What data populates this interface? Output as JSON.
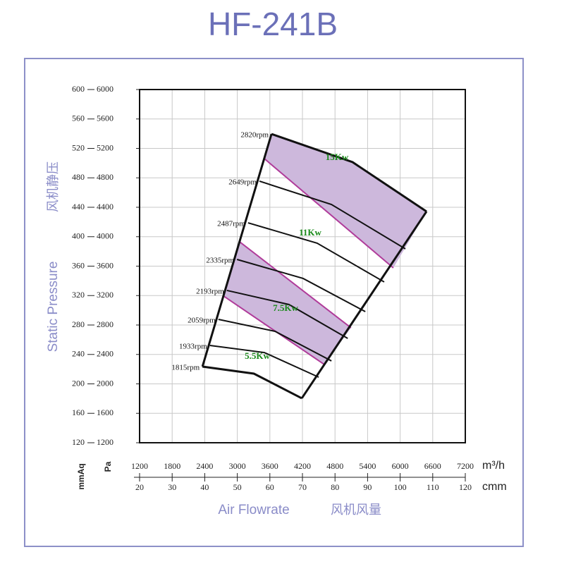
{
  "chart_data": {
    "type": "fan-curve",
    "title": "HF-241B",
    "y_axis_title": "Static Pressure",
    "y_axis_title_cn": "风机静压",
    "x_axis_title": "Air Flowrate",
    "x_axis_title_cn": "风机风量",
    "y_unit": "mmAq",
    "y2_unit": "Pa",
    "x_unit": "cmm",
    "x2_unit": "m³/h",
    "xlim": [
      20,
      120
    ],
    "xticks": [
      20,
      30,
      40,
      50,
      60,
      70,
      80,
      90,
      100,
      110,
      120
    ],
    "x2lim": [
      1200,
      7200
    ],
    "x2ticks": [
      1200,
      1800,
      2400,
      3000,
      3600,
      4200,
      4800,
      5400,
      6000,
      6600,
      7200
    ],
    "ylim": [
      120,
      600
    ],
    "yticks": [
      120,
      160,
      200,
      240,
      280,
      320,
      360,
      400,
      440,
      480,
      520,
      560,
      600
    ],
    "y2lim": [
      1200,
      6000
    ],
    "y2ticks": [
      1200,
      1600,
      2000,
      2400,
      2800,
      3200,
      3600,
      4000,
      4400,
      4800,
      5200,
      5600,
      6000
    ],
    "grid": true,
    "series": [
      {
        "name": "2820rpm",
        "x": [
          60.5,
          85.4,
          108.1
        ],
        "values": [
          539.6,
          501.3,
          434.3
        ]
      },
      {
        "name": "2649rpm",
        "x": [
          56.8,
          78.9,
          101.6
        ],
        "values": [
          475.5,
          443.8,
          383.5
        ]
      },
      {
        "name": "2487rpm",
        "x": [
          53.3,
          74.5,
          95.1
        ],
        "values": [
          418.9,
          391.2,
          338.5
        ]
      },
      {
        "name": "2335rpm",
        "x": [
          49.9,
          70.2,
          89.3
        ],
        "values": [
          369.1,
          343.3,
          298.2
        ]
      },
      {
        "name": "2193rpm",
        "x": [
          46.8,
          65.9,
          83.9
        ],
        "values": [
          327.0,
          307.8,
          261.8
        ]
      },
      {
        "name": "2059rpm",
        "x": [
          44.2,
          61.6,
          78.9
        ],
        "values": [
          287.7,
          271.4,
          231.2
        ]
      },
      {
        "name": "1933rpm",
        "x": [
          41.6,
          58.3,
          75.0
        ],
        "values": [
          252.2,
          242.6,
          209.1
        ]
      },
      {
        "name": "1815rpm",
        "x": [
          39.3,
          55.1,
          69.8
        ],
        "values": [
          223.5,
          213.9,
          180.4
        ]
      }
    ],
    "shade_color": "#cdb8dc",
    "power_line_color": "#b03c9a",
    "shaded_regions": [
      {
        "x": [
          60.5,
          85.4,
          108.1,
          97.9,
          58.3
        ],
        "values": [
          539.6,
          501.3,
          434.3,
          357.6,
          506.1
        ]
      },
      {
        "x": [
          50.7,
          84.9,
          76.7,
          45.8
        ],
        "values": [
          393.1,
          276.2,
          226.4,
          319.3
        ]
      }
    ],
    "power_lines": [
      {
        "x": [
          58.3,
          97.9
        ],
        "values": [
          506.1,
          357.6
        ]
      },
      {
        "x": [
          50.7,
          84.9
        ],
        "values": [
          393.1,
          276.2
        ]
      },
      {
        "x": [
          45.8,
          76.7
        ],
        "values": [
          319.3,
          226.4
        ]
      }
    ],
    "power_labels": [
      "15Kw",
      "11Kw",
      "7.5Kw",
      "5.5Kw"
    ]
  }
}
